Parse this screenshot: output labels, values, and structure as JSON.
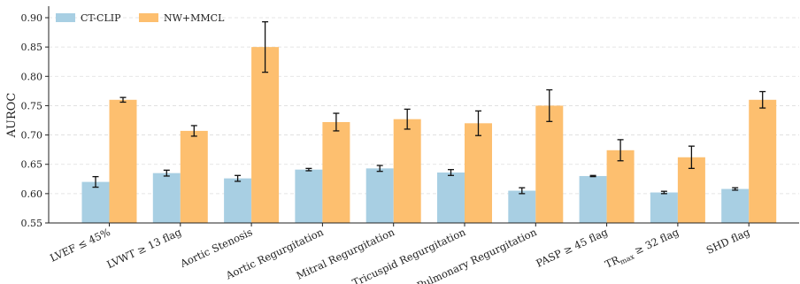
{
  "chart_data": {
    "type": "bar",
    "ylabel": "AUROC",
    "xlabel": "",
    "ylim": [
      0.55,
      0.9
    ],
    "yticks": [
      "0.55",
      "0.60",
      "0.65",
      "0.70",
      "0.75",
      "0.80",
      "0.85",
      "0.90"
    ],
    "grid": "y-dashed",
    "legend_position": "top-left",
    "categories": [
      "LVEF ≤ 45%",
      "LVWT ≥ 13 flag",
      "Aortic Stenosis",
      "Aortic Regurgitation",
      "Mitral Regurgitation",
      "Tricuspid Regurgitation",
      "Pulmonary Regurgitation",
      "PASP ≥ 45 flag",
      "TR max ≥ 32 flag",
      "SHD flag"
    ],
    "series": [
      {
        "name": "CT-CLIP",
        "color": "#a8cfe3",
        "values": [
          0.62,
          0.635,
          0.626,
          0.641,
          0.643,
          0.636,
          0.605,
          0.63,
          0.602,
          0.608
        ],
        "errors": [
          0.009,
          0.005,
          0.005,
          0.002,
          0.005,
          0.005,
          0.005,
          0.001,
          0.002,
          0.002
        ]
      },
      {
        "name": "NW+MMCL",
        "color": "#fdbf6f",
        "values": [
          0.76,
          0.707,
          0.85,
          0.722,
          0.727,
          0.72,
          0.75,
          0.674,
          0.662,
          0.76
        ],
        "errors": [
          0.004,
          0.009,
          0.043,
          0.015,
          0.017,
          0.021,
          0.027,
          0.018,
          0.019,
          0.014
        ]
      }
    ]
  }
}
